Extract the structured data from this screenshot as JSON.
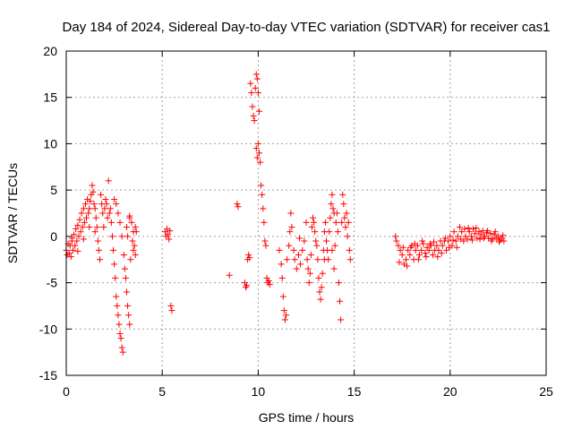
{
  "chart_data": {
    "type": "scatter",
    "title": "Day 184 of 2024, Sidereal Day-to-day VTEC variation (SDTVAR) for receiver cas1",
    "xlabel": "GPS time / hours",
    "ylabel": "SDTVAR / TECUs",
    "xlim": [
      0,
      25
    ],
    "ylim": [
      -15,
      20
    ],
    "grid": true,
    "marker": "+",
    "series_color": "#ff0000",
    "x_ticks": [
      {
        "value": 0,
        "label": "0"
      },
      {
        "value": 5,
        "label": "5"
      },
      {
        "value": 10,
        "label": "10"
      },
      {
        "value": 15,
        "label": "15"
      },
      {
        "value": 20,
        "label": "20"
      },
      {
        "value": 25,
        "label": "25"
      }
    ],
    "y_ticks": [
      {
        "value": -15,
        "label": "-15"
      },
      {
        "value": -10,
        "label": "-10"
      },
      {
        "value": -5,
        "label": "-5"
      },
      {
        "value": 0,
        "label": "0"
      },
      {
        "value": 5,
        "label": "5"
      },
      {
        "value": 10,
        "label": "10"
      },
      {
        "value": 15,
        "label": "15"
      },
      {
        "value": 20,
        "label": "20"
      }
    ],
    "series": [
      {
        "name": "SDTVAR",
        "points": [
          [
            0.0,
            -1.5
          ],
          [
            0.05,
            -2.0
          ],
          [
            0.1,
            -0.8
          ],
          [
            0.15,
            -1.8
          ],
          [
            0.2,
            -1.0
          ],
          [
            0.25,
            -2.2
          ],
          [
            0.3,
            -0.5
          ],
          [
            0.35,
            -1.5
          ],
          [
            0.4,
            0.2
          ],
          [
            0.45,
            -1.0
          ],
          [
            0.5,
            0.8
          ],
          [
            0.55,
            -0.5
          ],
          [
            0.6,
            1.2
          ],
          [
            0.65,
            0.0
          ],
          [
            0.7,
            1.8
          ],
          [
            0.75,
            0.5
          ],
          [
            0.8,
            2.5
          ],
          [
            0.85,
            1.0
          ],
          [
            0.9,
            3.0
          ],
          [
            0.95,
            1.5
          ],
          [
            1.0,
            3.5
          ],
          [
            1.05,
            2.0
          ],
          [
            1.1,
            4.0
          ],
          [
            1.15,
            2.5
          ],
          [
            1.2,
            3.0
          ],
          [
            1.25,
            3.8
          ],
          [
            1.3,
            4.5
          ],
          [
            1.35,
            5.5
          ],
          [
            1.4,
            4.8
          ],
          [
            1.45,
            3.5
          ],
          [
            1.5,
            3.0
          ],
          [
            1.55,
            2.0
          ],
          [
            1.6,
            1.0
          ],
          [
            1.65,
            -0.5
          ],
          [
            1.7,
            -1.5
          ],
          [
            1.75,
            -2.5
          ],
          [
            1.8,
            4.5
          ],
          [
            1.85,
            3.5
          ],
          [
            1.9,
            2.5
          ],
          [
            1.95,
            1.0
          ],
          [
            2.0,
            3.0
          ],
          [
            2.05,
            4.0
          ],
          [
            2.1,
            3.5
          ],
          [
            2.15,
            2.0
          ],
          [
            2.2,
            6.0
          ],
          [
            2.25,
            2.5
          ],
          [
            2.3,
            3.0
          ],
          [
            2.35,
            1.5
          ],
          [
            2.4,
            0.0
          ],
          [
            2.45,
            -1.5
          ],
          [
            2.5,
            -3.0
          ],
          [
            2.55,
            -4.5
          ],
          [
            2.6,
            -6.5
          ],
          [
            2.65,
            -7.5
          ],
          [
            2.7,
            -8.5
          ],
          [
            2.75,
            -9.5
          ],
          [
            2.8,
            -10.5
          ],
          [
            2.85,
            -11.0
          ],
          [
            2.9,
            -12.0
          ],
          [
            2.95,
            -12.5
          ],
          [
            2.5,
            4.0
          ],
          [
            2.6,
            3.5
          ],
          [
            2.7,
            2.5
          ],
          [
            2.8,
            1.5
          ],
          [
            2.9,
            0.0
          ],
          [
            3.0,
            -2.0
          ],
          [
            3.05,
            -3.5
          ],
          [
            3.1,
            -4.5
          ],
          [
            3.15,
            -6.0
          ],
          [
            3.2,
            -7.5
          ],
          [
            3.25,
            -8.5
          ],
          [
            3.3,
            -9.5
          ],
          [
            3.15,
            1.0
          ],
          [
            3.2,
            0.0
          ],
          [
            3.3,
            2.0
          ],
          [
            3.4,
            1.5
          ],
          [
            3.5,
            0.5
          ],
          [
            3.55,
            -1.0
          ],
          [
            3.6,
            -2.0
          ],
          [
            3.65,
            0.5
          ],
          [
            3.5,
            -1.5
          ],
          [
            3.45,
            -0.5
          ],
          [
            3.35,
            -2.5
          ],
          [
            3.3,
            2.2
          ],
          [
            3.6,
            1.0
          ],
          [
            0.3,
            -0.2
          ],
          [
            0.6,
            -1.6
          ],
          [
            0.9,
            -0.3
          ],
          [
            1.2,
            1.0
          ],
          [
            1.5,
            0.5
          ],
          [
            5.15,
            0.5
          ],
          [
            5.2,
            0.0
          ],
          [
            5.25,
            0.8
          ],
          [
            5.3,
            0.2
          ],
          [
            5.35,
            -0.3
          ],
          [
            5.4,
            0.6
          ],
          [
            5.45,
            -7.5
          ],
          [
            5.5,
            -8.0
          ],
          [
            8.5,
            -4.2
          ],
          [
            8.9,
            3.5
          ],
          [
            8.95,
            3.2
          ],
          [
            9.3,
            -5.0
          ],
          [
            9.35,
            -5.5
          ],
          [
            9.4,
            -5.3
          ],
          [
            9.45,
            -2.5
          ],
          [
            9.5,
            -2.0
          ],
          [
            9.55,
            -2.3
          ],
          [
            9.6,
            16.5
          ],
          [
            9.65,
            15.5
          ],
          [
            9.7,
            14.0
          ],
          [
            9.75,
            13.0
          ],
          [
            9.8,
            12.5
          ],
          [
            9.85,
            16.0
          ],
          [
            9.9,
            17.5
          ],
          [
            9.95,
            17.0
          ],
          [
            10.0,
            15.5
          ],
          [
            10.05,
            13.5
          ],
          [
            9.9,
            9.5
          ],
          [
            9.95,
            8.5
          ],
          [
            10.0,
            10.0
          ],
          [
            10.05,
            9.0
          ],
          [
            10.1,
            8.0
          ],
          [
            10.15,
            5.5
          ],
          [
            10.2,
            4.5
          ],
          [
            10.25,
            3.0
          ],
          [
            10.3,
            1.5
          ],
          [
            10.35,
            -0.5
          ],
          [
            10.4,
            -1.0
          ],
          [
            10.45,
            -4.5
          ],
          [
            10.5,
            -5.0
          ],
          [
            10.55,
            -4.8
          ],
          [
            10.6,
            -5.2
          ],
          [
            11.1,
            -1.5
          ],
          [
            11.2,
            -3.0
          ],
          [
            11.25,
            -4.5
          ],
          [
            11.3,
            -6.5
          ],
          [
            11.35,
            -8.0
          ],
          [
            11.4,
            -9.0
          ],
          [
            11.45,
            -8.5
          ],
          [
            11.5,
            -2.5
          ],
          [
            11.6,
            -1.0
          ],
          [
            11.65,
            0.5
          ],
          [
            11.7,
            2.5
          ],
          [
            11.75,
            1.0
          ],
          [
            11.85,
            -1.5
          ],
          [
            11.9,
            -2.5
          ],
          [
            12.0,
            -3.5
          ],
          [
            12.1,
            -2.0
          ],
          [
            12.2,
            -3.0
          ],
          [
            12.3,
            -1.5
          ],
          [
            12.4,
            -0.5
          ],
          [
            12.5,
            1.5
          ],
          [
            12.55,
            -2.5
          ],
          [
            12.6,
            -3.5
          ],
          [
            12.65,
            -5.0
          ],
          [
            12.7,
            -4.0
          ],
          [
            12.75,
            -2.0
          ],
          [
            12.8,
            1.0
          ],
          [
            12.85,
            2.0
          ],
          [
            12.9,
            1.5
          ],
          [
            12.95,
            0.5
          ],
          [
            13.0,
            -0.5
          ],
          [
            13.05,
            -1.0
          ],
          [
            13.1,
            -2.5
          ],
          [
            13.15,
            -4.5
          ],
          [
            13.2,
            -6.0
          ],
          [
            13.25,
            -6.8
          ],
          [
            13.3,
            -5.5
          ],
          [
            13.35,
            -4.0
          ],
          [
            13.4,
            -1.5
          ],
          [
            13.45,
            0.5
          ],
          [
            13.5,
            1.5
          ],
          [
            13.55,
            -0.5
          ],
          [
            13.6,
            -1.5
          ],
          [
            13.65,
            -2.5
          ],
          [
            13.7,
            0.5
          ],
          [
            13.75,
            2.0
          ],
          [
            13.8,
            3.5
          ],
          [
            13.85,
            4.5
          ],
          [
            13.9,
            3.0
          ],
          [
            13.95,
            2.5
          ],
          [
            14.0,
            -1.0
          ],
          [
            14.05,
            1.5
          ],
          [
            14.1,
            2.5
          ],
          [
            14.15,
            0.5
          ],
          [
            14.2,
            -5.0
          ],
          [
            14.25,
            -7.0
          ],
          [
            14.3,
            -9.0
          ],
          [
            14.35,
            1.5
          ],
          [
            14.4,
            4.5
          ],
          [
            14.45,
            3.5
          ],
          [
            14.5,
            2.0
          ],
          [
            14.55,
            1.0
          ],
          [
            14.6,
            2.5
          ],
          [
            14.65,
            0.0
          ],
          [
            14.7,
            1.5
          ],
          [
            14.75,
            -1.5
          ],
          [
            14.8,
            -2.5
          ],
          [
            13.85,
            -1.5
          ],
          [
            13.95,
            -3.5
          ],
          [
            13.45,
            -2.5
          ],
          [
            12.15,
            -0.2
          ],
          [
            17.15,
            0.0
          ],
          [
            17.2,
            -0.5
          ],
          [
            17.3,
            -1.0
          ],
          [
            17.4,
            -1.5
          ],
          [
            17.5,
            -2.0
          ],
          [
            17.6,
            -3.0
          ],
          [
            17.7,
            -2.5
          ],
          [
            17.8,
            -1.5
          ],
          [
            17.9,
            -2.0
          ],
          [
            18.0,
            -1.0
          ],
          [
            18.1,
            -2.5
          ],
          [
            18.2,
            -1.5
          ],
          [
            18.3,
            -1.0
          ],
          [
            18.4,
            -2.0
          ],
          [
            18.5,
            -1.5
          ],
          [
            18.6,
            -0.8
          ],
          [
            18.7,
            -1.8
          ],
          [
            18.8,
            -1.2
          ],
          [
            18.9,
            -1.5
          ],
          [
            19.0,
            -1.0
          ],
          [
            19.1,
            -2.0
          ],
          [
            19.2,
            -1.5
          ],
          [
            19.3,
            -1.0
          ],
          [
            19.4,
            -1.5
          ],
          [
            19.5,
            -0.5
          ],
          [
            19.6,
            -1.0
          ],
          [
            19.7,
            -0.5
          ],
          [
            19.8,
            -1.5
          ],
          [
            19.9,
            -0.5
          ],
          [
            20.0,
            0.0
          ],
          [
            20.1,
            -1.0
          ],
          [
            20.2,
            0.5
          ],
          [
            20.3,
            -0.5
          ],
          [
            20.4,
            0.0
          ],
          [
            20.5,
            1.0
          ],
          [
            20.6,
            0.5
          ],
          [
            20.7,
            -0.5
          ],
          [
            20.8,
            0.0
          ],
          [
            20.9,
            -0.3
          ],
          [
            21.0,
            0.5
          ],
          [
            21.1,
            0.0
          ],
          [
            21.2,
            0.8
          ],
          [
            21.3,
            0.3
          ],
          [
            21.4,
            -0.2
          ],
          [
            21.5,
            0.5
          ],
          [
            21.6,
            0.2
          ],
          [
            21.7,
            0.6
          ],
          [
            21.8,
            0.0
          ],
          [
            21.9,
            0.4
          ],
          [
            22.0,
            -0.2
          ],
          [
            22.1,
            0.3
          ],
          [
            22.2,
            -0.3
          ],
          [
            22.3,
            0.2
          ],
          [
            22.4,
            -0.2
          ],
          [
            22.5,
            0.0
          ],
          [
            22.6,
            -0.4
          ],
          [
            22.7,
            -0.2
          ],
          [
            22.8,
            -0.5
          ],
          [
            17.35,
            -2.8
          ],
          [
            17.55,
            -1.2
          ],
          [
            17.75,
            -3.2
          ],
          [
            17.95,
            -1.2
          ],
          [
            18.15,
            -0.8
          ],
          [
            18.35,
            -2.5
          ],
          [
            18.55,
            -0.5
          ],
          [
            18.75,
            -2.2
          ],
          [
            18.95,
            -0.8
          ],
          [
            19.15,
            -0.6
          ],
          [
            19.35,
            -2.2
          ],
          [
            19.55,
            -1.8
          ],
          [
            19.75,
            -0.2
          ],
          [
            19.95,
            -1.2
          ],
          [
            20.15,
            -0.4
          ],
          [
            20.35,
            -1.2
          ],
          [
            20.55,
            -0.3
          ],
          [
            20.75,
            0.8
          ],
          [
            20.95,
            0.9
          ],
          [
            21.15,
            -0.4
          ],
          [
            21.35,
            0.9
          ],
          [
            21.55,
            -0.3
          ],
          [
            21.75,
            -0.2
          ],
          [
            21.95,
            0.6
          ],
          [
            22.15,
            -0.5
          ],
          [
            22.35,
            0.5
          ],
          [
            22.55,
            -0.6
          ],
          [
            22.75,
            0.1
          ]
        ]
      }
    ]
  }
}
